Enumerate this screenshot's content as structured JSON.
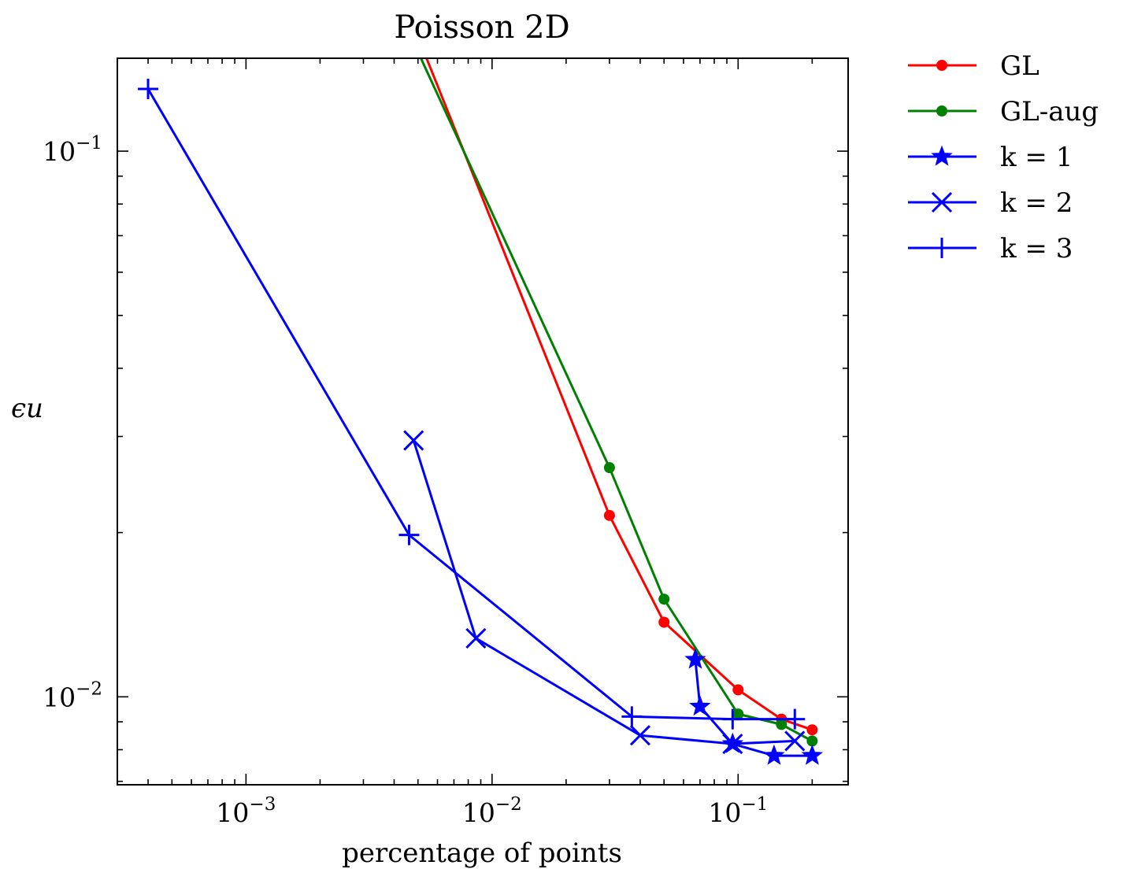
{
  "chart_data": {
    "type": "line",
    "title": "Poisson 2D",
    "xlabel": "percentage of points",
    "ylabel": "ϵu",
    "xscale": "log",
    "yscale": "log",
    "xlim": [
      0.0003,
      0.28
    ],
    "ylim": [
      0.0069,
      0.148
    ],
    "legend": "outside-right",
    "grid": false,
    "x_ticks": [
      {
        "value": 0.001,
        "base": "10",
        "exp": "−3"
      },
      {
        "value": 0.01,
        "base": "10",
        "exp": "−2"
      },
      {
        "value": 0.1,
        "base": "10",
        "exp": "−1"
      }
    ],
    "y_ticks": [
      {
        "value": 0.1,
        "base": "10",
        "exp": "−1"
      },
      {
        "value": 0.01,
        "base": "10",
        "exp": "−2"
      }
    ],
    "series": [
      {
        "name": "GL",
        "label_main": "GL",
        "label_sub": "",
        "color": "#ff0000",
        "marker": "dot",
        "x": [
          0.0052,
          0.03,
          0.05,
          0.1,
          0.15,
          0.2
        ],
        "y": [
          0.155,
          0.0215,
          0.0137,
          0.0103,
          0.0091,
          0.0087
        ]
      },
      {
        "name": "GL-aug",
        "label_main": "GL-aug",
        "label_sub": "",
        "color": "#008000",
        "marker": "dot",
        "x": [
          0.005,
          0.03,
          0.05,
          0.1,
          0.15,
          0.2
        ],
        "y": [
          0.152,
          0.0263,
          0.0151,
          0.0093,
          0.0089,
          0.0083
        ]
      },
      {
        "name": "k = 1",
        "label_main": "k = 1",
        "label_sub": "",
        "color": "#0000ff",
        "marker": "star",
        "x": [
          0.067,
          0.07,
          0.095,
          0.14,
          0.2
        ],
        "y": [
          0.0117,
          0.0096,
          0.0082,
          0.0078,
          0.0078
        ]
      },
      {
        "name": "k = 2",
        "label_main": "k = 2",
        "label_sub": "",
        "color": "#0000ff",
        "marker": "x",
        "x": [
          0.0048,
          0.0086,
          0.04,
          0.095,
          0.17
        ],
        "y": [
          0.0295,
          0.0128,
          0.0085,
          0.0082,
          0.0083
        ]
      },
      {
        "name": "k = 3",
        "label_main": "k = 3",
        "label_sub": "",
        "color": "#0000ff",
        "marker": "plus",
        "x": [
          0.0004,
          0.0046,
          0.037,
          0.095,
          0.17
        ],
        "y": [
          0.13,
          0.0198,
          0.0092,
          0.0091,
          0.0091
        ]
      }
    ]
  }
}
